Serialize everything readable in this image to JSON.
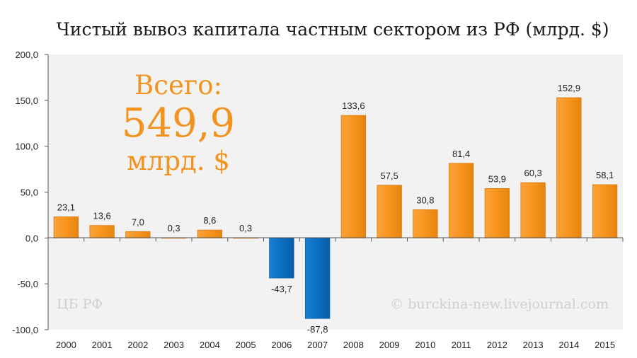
{
  "chart_data": {
    "type": "bar",
    "title": "Чистый вывоз капитала частным сектором из РФ (млрд. $)",
    "categories": [
      "2000",
      "2001",
      "2002",
      "2003",
      "2004",
      "2005",
      "2006",
      "2007",
      "2008",
      "2009",
      "2010",
      "2011",
      "2012",
      "2013",
      "2014",
      "2015"
    ],
    "values": [
      23.1,
      13.6,
      7.0,
      0.3,
      8.6,
      0.3,
      -43.7,
      -87.8,
      133.6,
      57.5,
      30.8,
      81.4,
      53.9,
      60.3,
      152.9,
      58.1
    ],
    "value_labels": [
      "23,1",
      "13,6",
      "7,0",
      "0,3",
      "8,6",
      "0,3",
      "-43,7",
      "-87,8",
      "133,6",
      "57,5",
      "30,8",
      "81,4",
      "53,9",
      "60,3",
      "152,9",
      "58,1"
    ],
    "ylim": [
      -100,
      200
    ],
    "yticks": [
      -100,
      -50,
      0,
      50,
      100,
      150,
      200
    ],
    "ytick_labels": [
      "-100,0",
      "-50,0",
      "0,0",
      "50,0",
      "100,0",
      "150,0",
      "200,0"
    ],
    "grid": false,
    "colors": {
      "positive": "#f7941d",
      "negative": "#0b6fc1",
      "annotation": "#f3931f",
      "plot_background": "#f2f2f2"
    }
  },
  "annotation": {
    "line1": "Всего:",
    "line2": "549,9",
    "line3": "млрд. $"
  },
  "watermarks": {
    "left": "ЦБ РФ",
    "right": "© burckina-new.livejournal.com"
  }
}
